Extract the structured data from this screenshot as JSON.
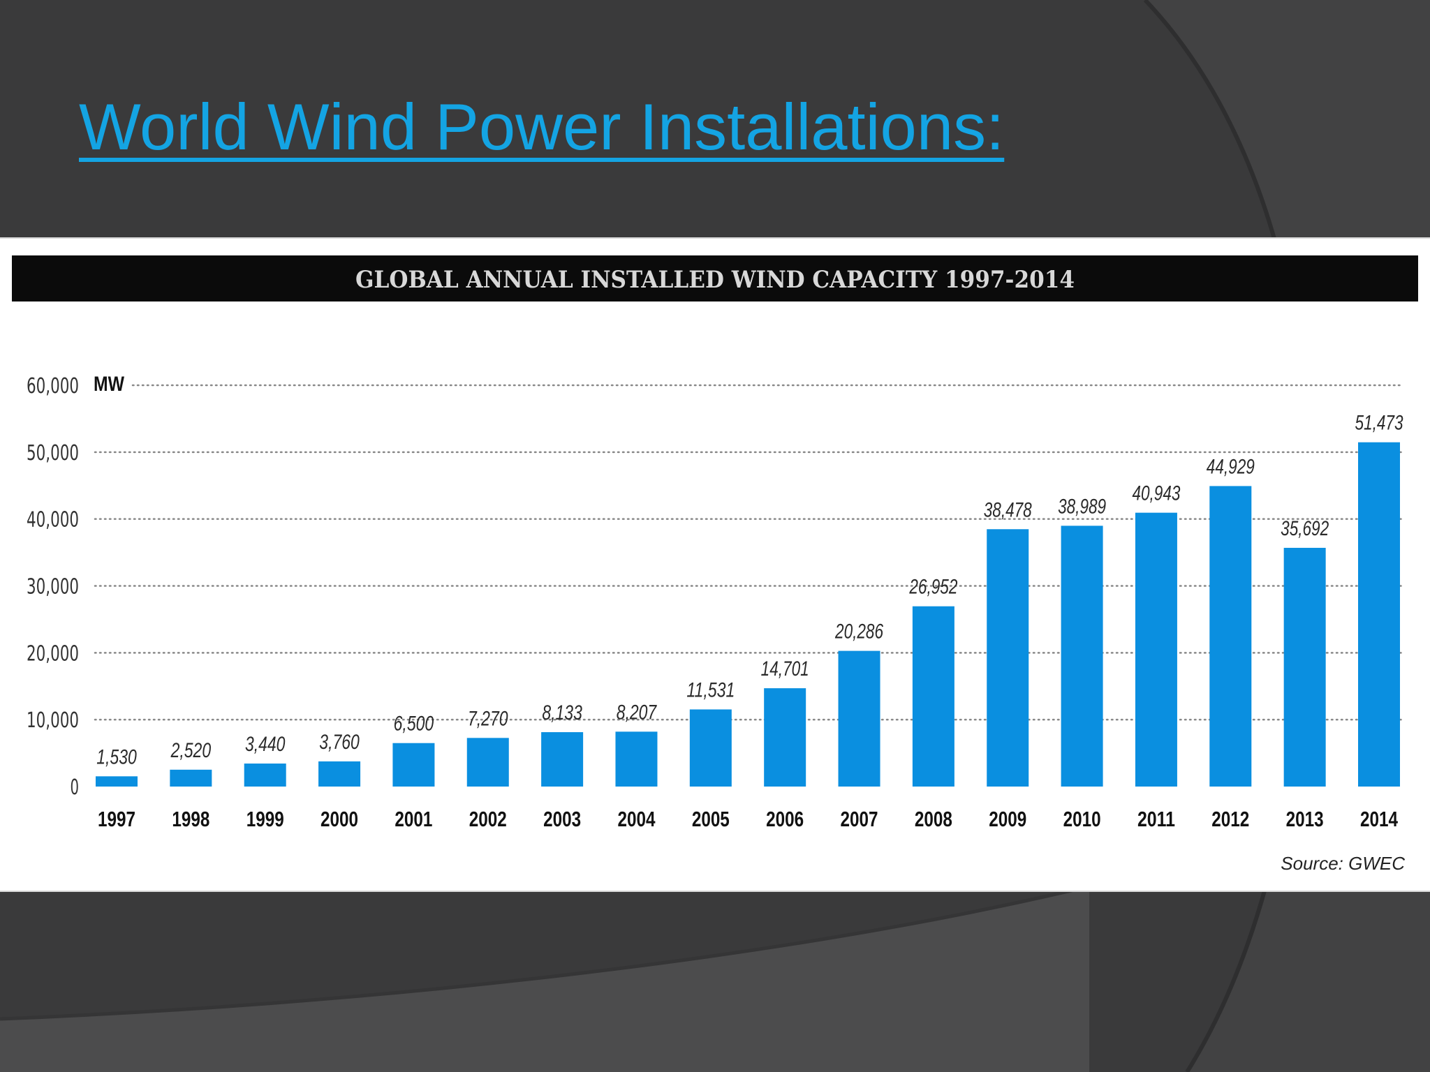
{
  "slide": {
    "title": "World Wind Power Installations:"
  },
  "colors": {
    "background": "#3a3a3b",
    "title": "#14a4e3",
    "bar": "#0a8fe0",
    "chart_header": "#0b0b0b",
    "chart_header_text": "#d8d8d8"
  },
  "chart_data": {
    "type": "bar",
    "title": "GLOBAL ANNUAL INSTALLED WIND CAPACITY 1997-2014",
    "ylabel": "MW",
    "xlabel": "",
    "categories": [
      "1997",
      "1998",
      "1999",
      "2000",
      "2001",
      "2002",
      "2003",
      "2004",
      "2005",
      "2006",
      "2007",
      "2008",
      "2009",
      "2010",
      "2011",
      "2012",
      "2013",
      "2014"
    ],
    "values": [
      1530,
      2520,
      3440,
      3760,
      6500,
      7270,
      8133,
      8207,
      11531,
      14701,
      20286,
      26952,
      38478,
      38989,
      40943,
      44929,
      35692,
      51473
    ],
    "value_labels": [
      "1,530",
      "2,520",
      "3,440",
      "3,760",
      "6,500",
      "7,270",
      "8,133",
      "8,207",
      "11,531",
      "14,701",
      "20,286",
      "26,952",
      "38,478",
      "38,989",
      "40,943",
      "44,929",
      "35,692",
      "51,473"
    ],
    "yticks": [
      0,
      10000,
      20000,
      30000,
      40000,
      50000,
      60000
    ],
    "ytick_labels": [
      "0",
      "10,000",
      "20,000",
      "30,000",
      "40,000",
      "50,000",
      "60,000"
    ],
    "ylim": [
      0,
      60000
    ],
    "grid": "dotted horizontal",
    "source": "Source: GWEC"
  }
}
